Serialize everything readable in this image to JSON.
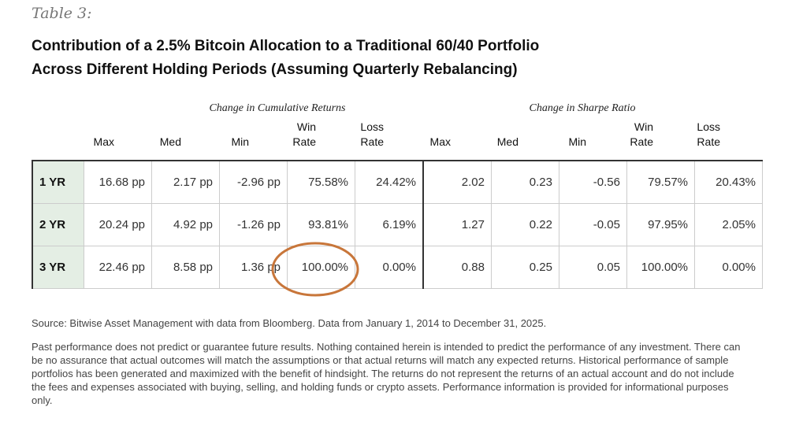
{
  "table_label": "Table 3:",
  "title_line1": "Contribution of a 2.5% Bitcoin Allocation to a Traditional 60/40 Portfolio",
  "title_line2": "Across Different Holding Periods (Assuming Quarterly Rebalancing)",
  "groups": [
    "Change in Cumulative Returns",
    "Change in Sharpe Ratio"
  ],
  "columns": [
    [
      "",
      "Max"
    ],
    [
      "",
      "Med"
    ],
    [
      "",
      "Min"
    ],
    [
      "Win",
      "Rate"
    ],
    [
      "Loss",
      "Rate"
    ],
    [
      "",
      "Max"
    ],
    [
      "",
      "Med"
    ],
    [
      "",
      "Min"
    ],
    [
      "Win",
      "Rate"
    ],
    [
      "Loss",
      "Rate"
    ]
  ],
  "rows": [
    {
      "label": "1 YR",
      "values": [
        "16.68 pp",
        "2.17 pp",
        "-2.96 pp",
        "75.58%",
        "24.42%",
        "2.02",
        "0.23",
        "-0.56",
        "79.57%",
        "20.43%"
      ]
    },
    {
      "label": "2 YR",
      "values": [
        "20.24 pp",
        "4.92 pp",
        "-1.26 pp",
        "93.81%",
        "6.19%",
        "1.27",
        "0.22",
        "-0.05",
        "97.95%",
        "2.05%"
      ]
    },
    {
      "label": "3 YR",
      "values": [
        "22.46 pp",
        "8.58 pp",
        "1.36 pp",
        "100.00%",
        "0.00%",
        "0.88",
        "0.25",
        "0.05",
        "100.00%",
        "0.00%"
      ]
    }
  ],
  "highlight": {
    "row": 2,
    "col": 3,
    "color": "#c8763a"
  },
  "row_label_bg": "#e4eee4",
  "source": "Source: Bitwise Asset Management with data from Bloomberg. Data from January 1, 2014 to December 31, 2025.",
  "disclaimer": "Past performance does not predict or guarantee future results. Nothing contained herein is intended to predict the performance of any investment. There can be no assurance that actual outcomes will match the assumptions or that actual returns will match any expected returns. Historical performance of sample portfolios has been generated and maximized with the benefit of hindsight. The returns do not represent the returns of an actual account and do not include the fees and expenses associated with buying, selling, and holding funds or crypto assets. Performance information is provided for informational purposes only."
}
